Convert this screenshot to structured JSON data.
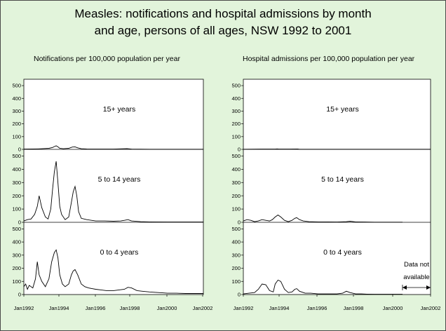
{
  "title_line1": "Measles: notifications and hospital admissions by month",
  "title_line2": "and age, persons of all ages, NSW 1992 to 2001",
  "chart_data": [
    {
      "type": "line",
      "title": "Notifications per 100,000 population per year",
      "x_ticks": [
        "Jan1992",
        "Jan1994",
        "Jan1996",
        "Jan1998",
        "Jan2000",
        "Jan2002"
      ],
      "x_range": [
        1992,
        2002
      ],
      "y_ticks": [
        "0",
        "100",
        "200",
        "300",
        "400",
        "500"
      ],
      "ylim": [
        0,
        550
      ],
      "panels": [
        {
          "label": "15+ years",
          "x": [
            1992.0,
            1992.5,
            1992.8,
            1993.0,
            1993.4,
            1993.6,
            1993.7,
            1993.8,
            1993.9,
            1994.0,
            1994.2,
            1994.5,
            1994.7,
            1994.85,
            1995.0,
            1995.2,
            1995.5,
            1996.0,
            1997.0,
            1997.6,
            1997.75,
            1998.0,
            1999.0,
            2000.0,
            2001.0,
            2002.0
          ],
          "y": [
            2,
            3,
            4,
            5,
            8,
            15,
            22,
            28,
            20,
            8,
            5,
            8,
            18,
            20,
            12,
            5,
            3,
            2,
            2,
            5,
            6,
            2,
            1,
            1,
            1,
            1
          ]
        },
        {
          "label": "5 to 14 years",
          "x": [
            1992.0,
            1992.2,
            1992.4,
            1992.6,
            1992.75,
            1992.85,
            1993.0,
            1993.2,
            1993.35,
            1993.5,
            1993.6,
            1993.7,
            1993.8,
            1993.9,
            1994.0,
            1994.1,
            1994.3,
            1994.5,
            1994.65,
            1994.75,
            1994.85,
            1994.95,
            1995.05,
            1995.2,
            1995.5,
            1996.0,
            1996.5,
            1997.0,
            1997.4,
            1997.6,
            1997.8,
            1998.0,
            1998.5,
            1999.0,
            2000.0,
            2001.0,
            2002.0
          ],
          "y": [
            10,
            20,
            25,
            60,
            120,
            200,
            110,
            40,
            25,
            100,
            250,
            380,
            460,
            300,
            120,
            60,
            20,
            40,
            150,
            230,
            270,
            200,
            80,
            30,
            20,
            10,
            10,
            8,
            10,
            15,
            20,
            10,
            5,
            3,
            2,
            2,
            2
          ]
        },
        {
          "label": "0 to 4 years",
          "x": [
            1992.0,
            1992.1,
            1992.2,
            1992.3,
            1992.4,
            1992.5,
            1992.65,
            1992.75,
            1992.85,
            1993.0,
            1993.2,
            1993.4,
            1993.55,
            1993.7,
            1993.8,
            1993.9,
            1994.0,
            1994.15,
            1994.3,
            1994.5,
            1994.65,
            1994.75,
            1994.85,
            1995.0,
            1995.2,
            1995.4,
            1995.6,
            1995.8,
            1996.0,
            1996.3,
            1996.6,
            1997.0,
            1997.3,
            1997.6,
            1997.8,
            1998.0,
            1998.3,
            1998.6,
            1999.0,
            1999.5,
            2000.0,
            2000.5,
            2001.0,
            2001.5,
            2002.0
          ],
          "y": [
            60,
            80,
            40,
            70,
            60,
            50,
            120,
            250,
            150,
            100,
            60,
            120,
            250,
            320,
            340,
            280,
            150,
            80,
            60,
            80,
            150,
            180,
            190,
            150,
            80,
            60,
            50,
            45,
            40,
            35,
            30,
            30,
            35,
            40,
            55,
            50,
            30,
            25,
            20,
            15,
            10,
            10,
            8,
            8,
            8
          ]
        }
      ]
    },
    {
      "type": "line",
      "title": "Hospital admissions per 100,000 population per year",
      "x_ticks": [
        "Jan1992",
        "Jan1994",
        "Jan1996",
        "Jan1998",
        "Jan2000",
        "Jan2002"
      ],
      "x_range": [
        1992,
        2002
      ],
      "y_ticks": [
        "0",
        "100",
        "200",
        "300",
        "400",
        "500"
      ],
      "ylim": [
        0,
        550
      ],
      "panels": [
        {
          "label": "15+ years",
          "x": [
            1992.0,
            1993.0,
            1993.7,
            1993.8,
            1993.9,
            1994.5,
            1994.9,
            1995.0,
            1995.5,
            2002.0
          ],
          "y": [
            1,
            2,
            2,
            4,
            2,
            2,
            3,
            1,
            1,
            1
          ]
        },
        {
          "label": "5 to 14 years",
          "x": [
            1992.0,
            1992.2,
            1992.4,
            1992.6,
            1992.8,
            1993.0,
            1993.2,
            1993.4,
            1993.55,
            1993.7,
            1993.85,
            1994.0,
            1994.2,
            1994.4,
            1994.6,
            1994.75,
            1994.85,
            1995.0,
            1995.2,
            1995.5,
            1996.0,
            1996.5,
            1997.0,
            1997.5,
            1997.7,
            1998.0,
            1998.5,
            1999.0,
            2000.5
          ],
          "y": [
            10,
            20,
            15,
            5,
            10,
            20,
            15,
            10,
            20,
            40,
            55,
            40,
            15,
            5,
            15,
            30,
            35,
            20,
            10,
            5,
            3,
            3,
            2,
            5,
            8,
            3,
            2,
            1,
            1
          ]
        },
        {
          "label": "0 to 4 years",
          "x": [
            1992.0,
            1992.3,
            1992.6,
            1992.8,
            1993.0,
            1993.2,
            1993.4,
            1993.6,
            1993.7,
            1993.85,
            1994.0,
            1994.2,
            1994.4,
            1994.6,
            1994.75,
            1994.85,
            1995.0,
            1995.3,
            1995.6,
            1996.0,
            1996.5,
            1997.0,
            1997.3,
            1997.5,
            1997.7,
            1998.0,
            1998.3,
            1998.6,
            1999.0,
            1999.5,
            2000.0,
            2000.5
          ],
          "y": [
            5,
            10,
            15,
            40,
            80,
            75,
            30,
            20,
            80,
            110,
            100,
            40,
            15,
            20,
            40,
            45,
            25,
            10,
            10,
            5,
            5,
            5,
            10,
            25,
            15,
            5,
            5,
            3,
            2,
            2,
            2,
            2
          ]
        }
      ],
      "annotation_line1": "Data not",
      "annotation_line2": "available",
      "annotation_range": [
        2000.5,
        2002
      ]
    }
  ]
}
